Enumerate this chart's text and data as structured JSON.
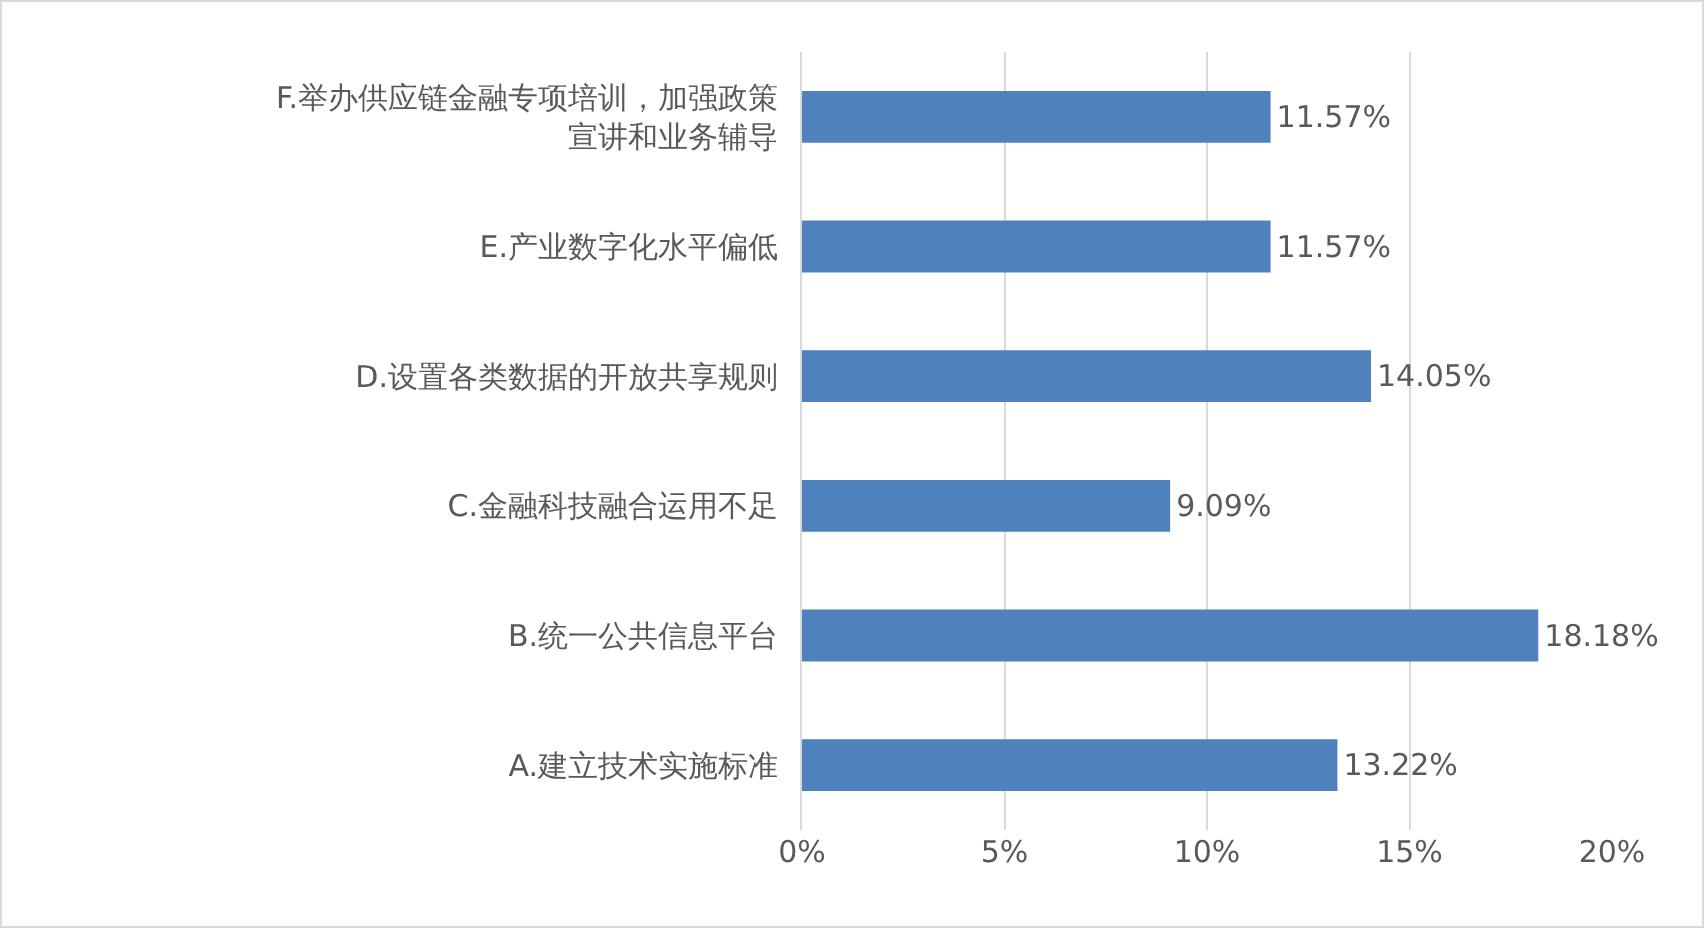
{
  "chart_data": {
    "type": "bar",
    "orientation": "horizontal",
    "categories": [
      "F.举办供应链金融专项培训，加强政策宣讲和业务辅导",
      "E.产业数字化水平偏低",
      "D.设置各类数据的开放共享规则",
      "C.金融科技融合运用不足",
      "B.统一公共信息平台",
      "A.建立技术实施标准"
    ],
    "values": [
      11.57,
      11.57,
      14.05,
      9.09,
      18.18,
      13.22
    ],
    "value_labels": [
      "11.57%",
      "11.57%",
      "14.05%",
      "9.09%",
      "18.18%",
      "13.22%"
    ],
    "color": "#4f81bd",
    "xlim": [
      0,
      20
    ],
    "xticks": [
      {
        "value": 0,
        "label": "0%"
      },
      {
        "value": 5,
        "label": "5%"
      },
      {
        "value": 10,
        "label": "10%"
      },
      {
        "value": 15,
        "label": "15%"
      },
      {
        "value": 20,
        "label": "20%"
      }
    ],
    "grid": "x"
  }
}
